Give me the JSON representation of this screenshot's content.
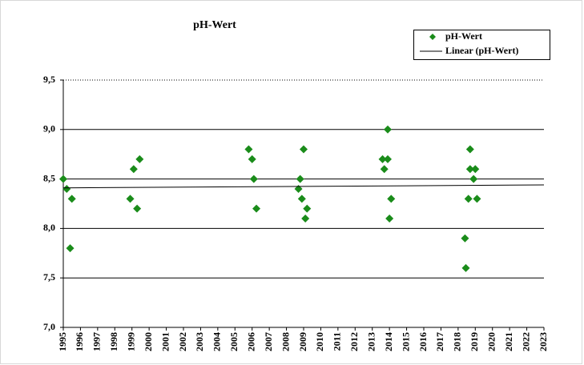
{
  "chart_data": {
    "type": "scatter",
    "title": "pH-Wert",
    "series": [
      {
        "name": "pH-Wert",
        "color": "#1a8c1a",
        "style": "marker",
        "x": [
          1995.0,
          1995.2,
          1995.5,
          1995.4,
          1998.9,
          1999.1,
          1999.3,
          1999.45,
          2005.8,
          2006.0,
          2006.1,
          2006.25,
          2008.7,
          2008.8,
          2008.9,
          2009.0,
          2009.2,
          2009.1,
          2013.6,
          2013.7,
          2013.9,
          2013.9,
          2014.1,
          2014.0,
          2018.4,
          2018.45,
          2018.6,
          2018.7,
          2018.7,
          2019.0,
          2018.9,
          2019.1
        ],
        "values": [
          8.5,
          8.4,
          8.3,
          7.8,
          8.3,
          8.6,
          8.2,
          8.7,
          8.8,
          8.7,
          8.5,
          8.2,
          8.4,
          8.5,
          8.3,
          8.8,
          8.2,
          8.1,
          8.7,
          8.6,
          9.0,
          8.7,
          8.3,
          8.1,
          7.9,
          7.6,
          8.3,
          8.8,
          8.6,
          8.6,
          8.5,
          8.3
        ]
      },
      {
        "name": "Linear (pH-Wert)",
        "color": "#000000",
        "style": "line",
        "x": [
          1995,
          2023
        ],
        "values": [
          8.41,
          8.44
        ]
      }
    ],
    "xlim": [
      1995,
      2023
    ],
    "xticks": [
      1995,
      1996,
      1997,
      1998,
      1999,
      2000,
      2001,
      2002,
      2003,
      2004,
      2005,
      2006,
      2007,
      2008,
      2009,
      2010,
      2011,
      2012,
      2013,
      2014,
      2015,
      2016,
      2017,
      2018,
      2019,
      2020,
      2021,
      2022,
      2023
    ],
    "ylim": [
      7.0,
      9.5
    ],
    "yticks": [
      {
        "value": 7.0,
        "label": "7,0"
      },
      {
        "value": 7.5,
        "label": "7,5"
      },
      {
        "value": 8.0,
        "label": "8,0"
      },
      {
        "value": 8.5,
        "label": "8,5"
      },
      {
        "value": 9.0,
        "label": "9,0"
      },
      {
        "value": 9.5,
        "label": "9,5"
      }
    ],
    "grid": true,
    "legend": "top-right"
  }
}
